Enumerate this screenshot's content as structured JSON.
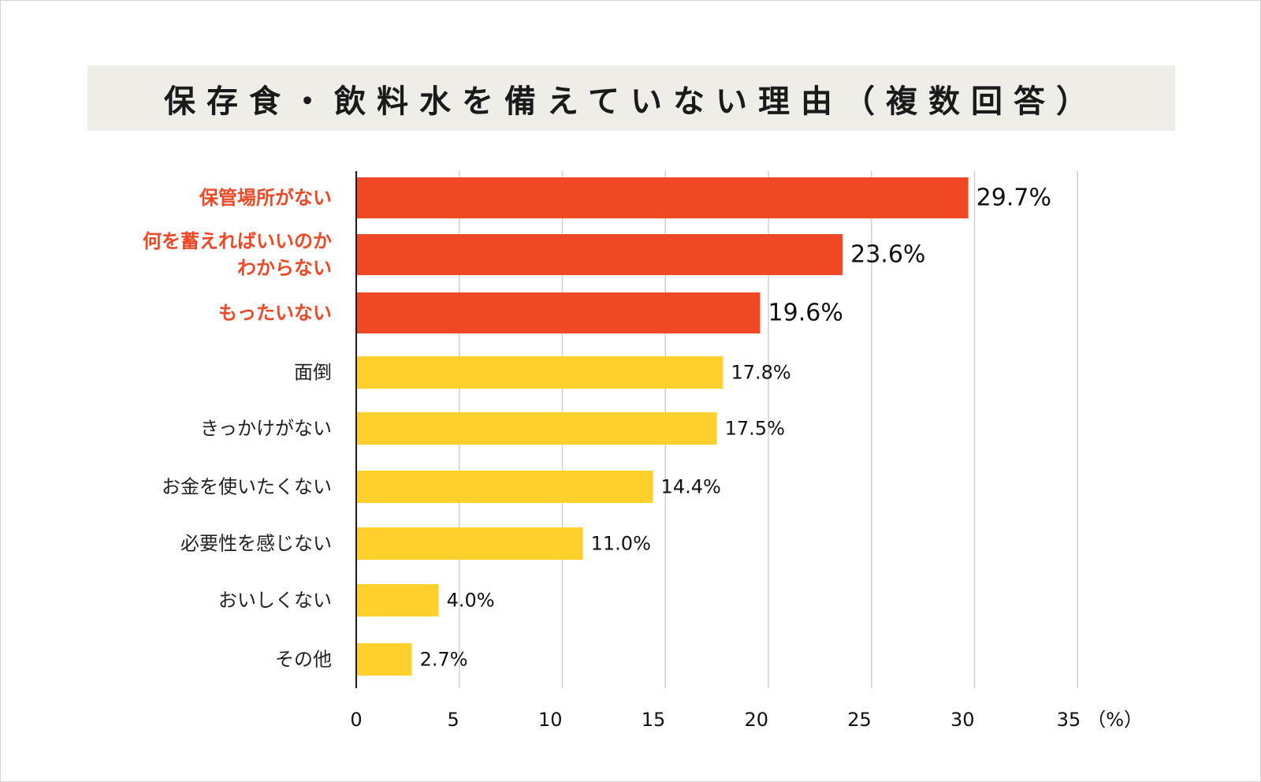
{
  "title": "保存食・飲料水を備えていない理由（複数回答）",
  "colors": {
    "highlight": "#f04825",
    "normal": "#ffd02b",
    "highlight_text": "#ee4826",
    "grid": "#cfcfcf",
    "axis": "#1a1a1a"
  },
  "chart_data": {
    "type": "bar",
    "orientation": "horizontal",
    "title": "保存食・飲料水を備えていない理由（複数回答）",
    "unit_label": "（%）",
    "xlim": [
      0,
      35
    ],
    "xticks": [
      0,
      5,
      10,
      15,
      20,
      25,
      30,
      35
    ],
    "grid": true,
    "categories": [
      "保管場所がない",
      "何を蓄えればいいのか\nわからない",
      "もったいない",
      "面倒",
      "きっかけがない",
      "お金を使いたくない",
      "必要性を感じない",
      "おいしくない",
      "その他"
    ],
    "values": [
      29.7,
      23.6,
      19.6,
      17.8,
      17.5,
      14.4,
      11.0,
      4.0,
      2.7
    ],
    "value_labels": [
      "29.7%",
      "23.6%",
      "19.6%",
      "17.8%",
      "17.5%",
      "14.4%",
      "11.0%",
      "4.0%",
      "2.7%"
    ],
    "highlighted": [
      true,
      true,
      true,
      false,
      false,
      false,
      false,
      false,
      false
    ]
  }
}
